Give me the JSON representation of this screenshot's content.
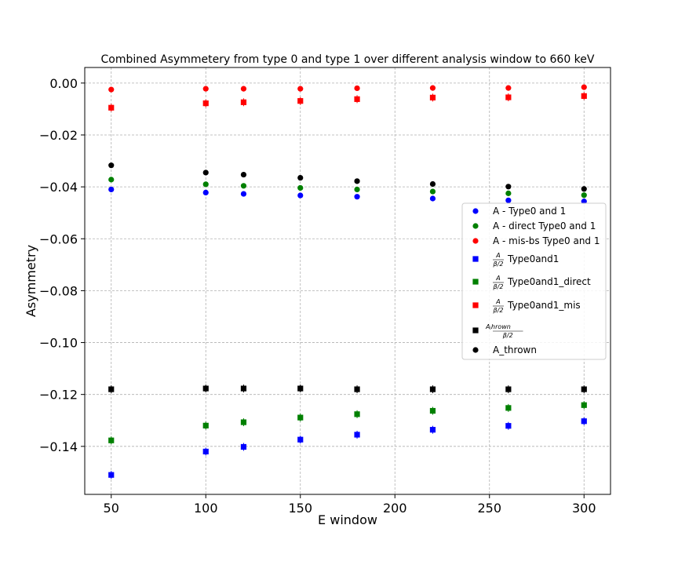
{
  "chart_data": {
    "type": "scatter",
    "title": "Combined Asymmetery from type 0 and type 1 over different analysis window to 660 keV",
    "xlabel": "E window",
    "ylabel": "Asymmetry",
    "xlim": [
      36,
      314
    ],
    "ylim": [
      -0.1585,
      0.006
    ],
    "x_ticks": [
      50,
      100,
      150,
      200,
      250,
      300
    ],
    "y_ticks": [
      0.0,
      -0.02,
      -0.04,
      -0.06,
      -0.08,
      -0.1,
      -0.12,
      -0.14
    ],
    "x_tick_labels": [
      "50",
      "100",
      "150",
      "200",
      "250",
      "300"
    ],
    "y_tick_labels": [
      "0.00",
      "−0.02",
      "−0.04",
      "−0.06",
      "−0.08",
      "−0.10",
      "−0.12",
      "−0.14"
    ],
    "grid": true,
    "legend_position": "right",
    "x": [
      50,
      100,
      120,
      150,
      180,
      220,
      260,
      300
    ],
    "series": [
      {
        "name": "A - Type0 and 1",
        "marker": "circle",
        "color": "#0000ff",
        "values": [
          -0.041,
          -0.0422,
          -0.0427,
          -0.0433,
          -0.0438,
          -0.0445,
          -0.0452,
          -0.0456
        ]
      },
      {
        "name": "A - direct Type0 and 1",
        "marker": "circle",
        "color": "#008000",
        "values": [
          -0.0372,
          -0.039,
          -0.0396,
          -0.0404,
          -0.041,
          -0.0418,
          -0.0425,
          -0.0432
        ]
      },
      {
        "name": "A - mis-bs Type0 and 1",
        "marker": "circle",
        "color": "#ff0000",
        "values": [
          -0.0025,
          -0.0022,
          -0.0022,
          -0.0022,
          -0.002,
          -0.0019,
          -0.0019,
          -0.0016
        ]
      },
      {
        "name": "Type0and1",
        "legend_frac": "A / β/2",
        "marker": "square",
        "color": "#0000ff",
        "values": [
          -0.151,
          -0.142,
          -0.1402,
          -0.1374,
          -0.1355,
          -0.1336,
          -0.1321,
          -0.1303
        ]
      },
      {
        "name": "Type0and1_direct",
        "legend_frac": "A / β/2",
        "marker": "square",
        "color": "#008000",
        "values": [
          -0.1377,
          -0.132,
          -0.1307,
          -0.1289,
          -0.1276,
          -0.1263,
          -0.1252,
          -0.1241
        ]
      },
      {
        "name": "Type0and1_mis",
        "legend_frac": "A / β/2",
        "marker": "square",
        "color": "#ff0000",
        "values": [
          -0.0095,
          -0.0078,
          -0.0074,
          -0.0069,
          -0.0062,
          -0.0056,
          -0.0055,
          -0.005
        ]
      },
      {
        "name": "",
        "legend_frac": "Aⱼhrown / β/2",
        "marker": "square",
        "color": "#000000",
        "values": [
          -0.118,
          -0.1177,
          -0.1177,
          -0.1177,
          -0.118,
          -0.118,
          -0.118,
          -0.118
        ]
      },
      {
        "name": "A_thrown",
        "marker": "circle",
        "color": "#000000",
        "values": [
          -0.0317,
          -0.0345,
          -0.0353,
          -0.0365,
          -0.0378,
          -0.0389,
          -0.0399,
          -0.0408
        ]
      }
    ]
  }
}
